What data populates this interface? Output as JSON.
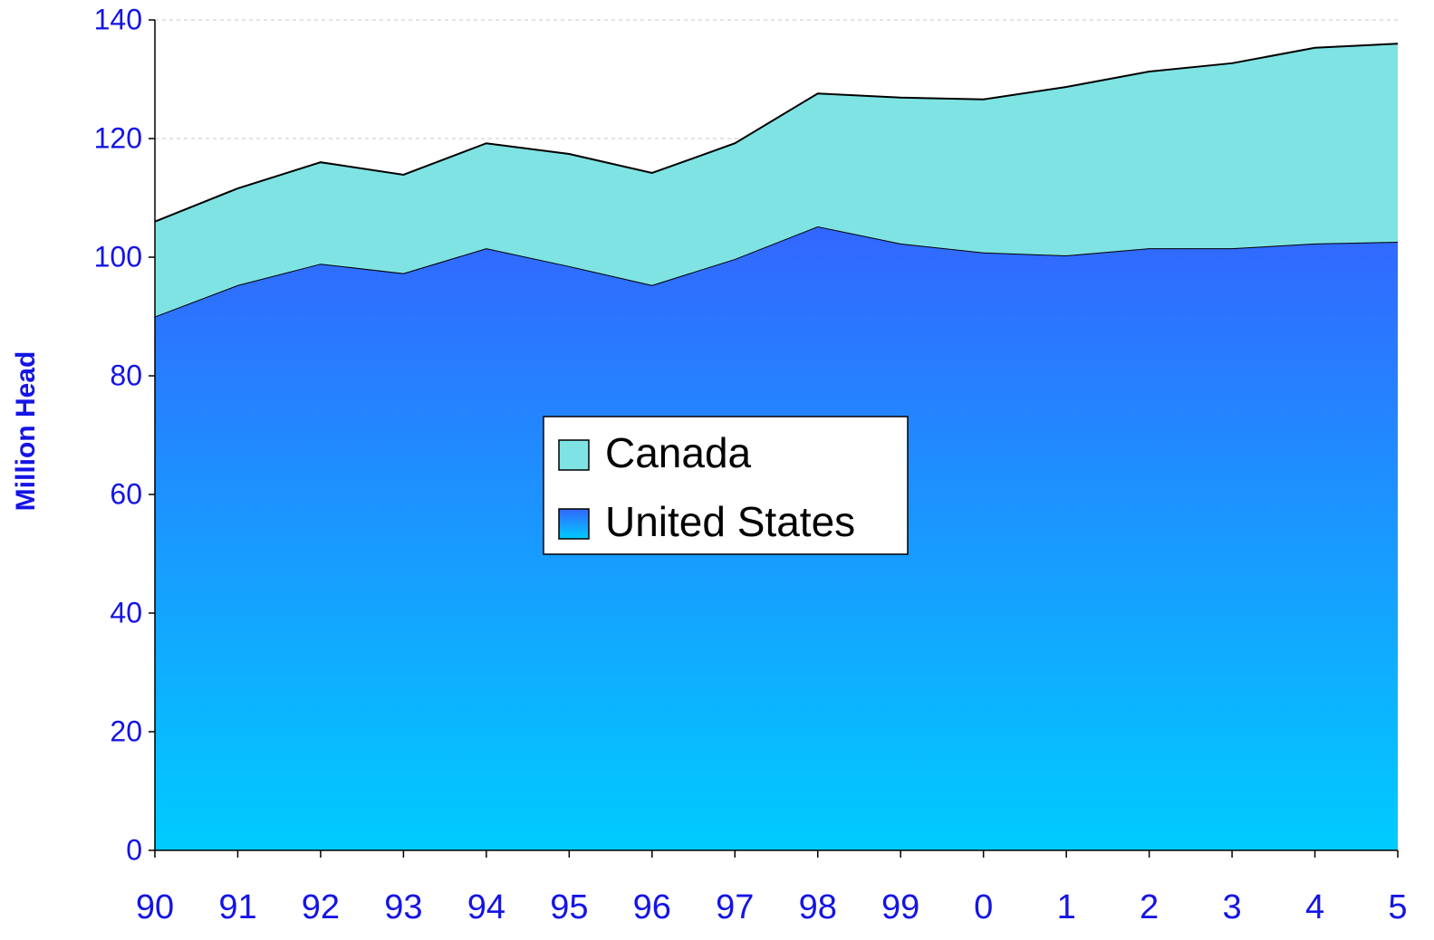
{
  "chart_data": {
    "type": "stacked_area",
    "y_label": "Million Head",
    "categories": [
      "90",
      "91",
      "92",
      "93",
      "94",
      "95",
      "96",
      "97",
      "98",
      "99",
      "0",
      "1",
      "2",
      "3",
      "4",
      "5"
    ],
    "series": [
      {
        "name": "United States",
        "color": "#3366ff",
        "gradient_end": "#00ccff",
        "values": [
          90,
          95.3,
          98.9,
          97.3,
          101.5,
          98.5,
          95.3,
          99.7,
          105.2,
          102.3,
          100.8,
          100.3,
          101.5,
          101.5,
          102.3,
          102.6
        ]
      },
      {
        "name": "Canada",
        "color": "#7fe3e3",
        "values": [
          16,
          16.3,
          17.1,
          16.6,
          17.7,
          18.9,
          18.9,
          19.5,
          22.4,
          24.6,
          25.8,
          28.4,
          29.8,
          31.2,
          33,
          33.4
        ]
      }
    ],
    "ylim": [
      0,
      140
    ],
    "yticks": [
      0,
      20,
      40,
      60,
      80,
      100,
      120,
      140
    ],
    "grid": true,
    "legend": "center"
  }
}
